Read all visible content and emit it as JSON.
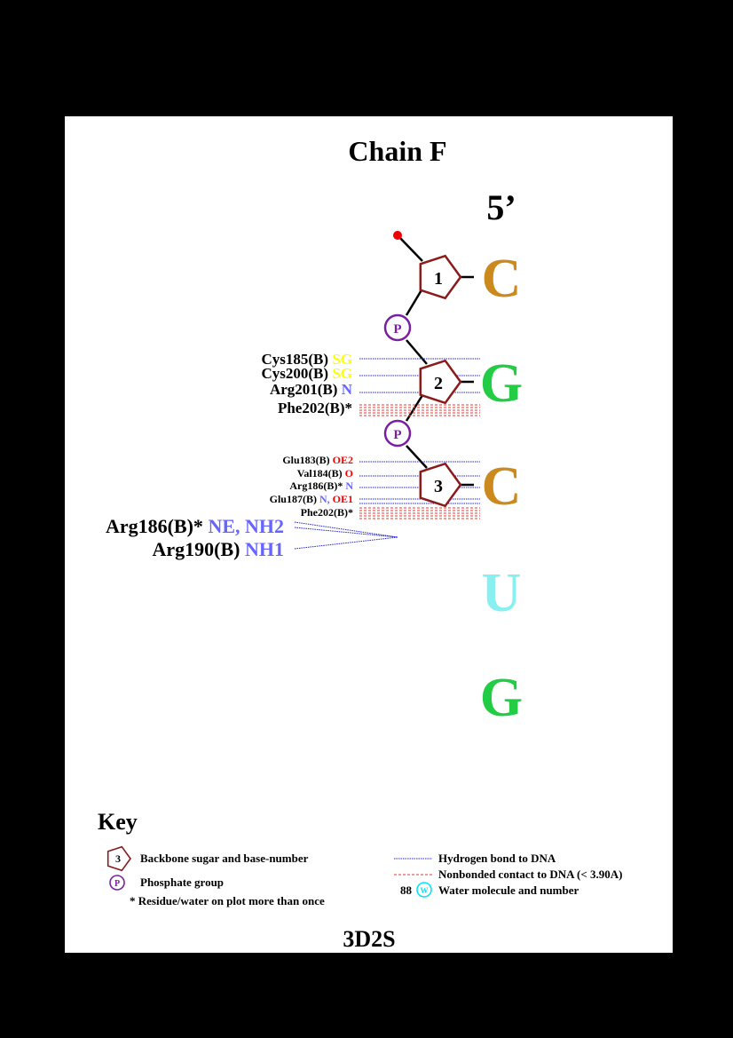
{
  "title": "Chain F",
  "strand_end": "5’",
  "pdb_id": "3D2S",
  "colors": {
    "background": "#000000",
    "page": "#ffffff",
    "sugar": "#8b1a1a",
    "phosphate": "#7b1fa2",
    "hbond": "#2222cc",
    "nonbonded": "#e53935",
    "residue_text": "#000000",
    "atom_N": "#6666ff",
    "atom_O": "#ff0000",
    "atom_S": "#ffff00",
    "water": "#00e5ff"
  },
  "nucleotides": [
    {
      "number": "1",
      "base": "C",
      "color": "#cc8a1e"
    },
    {
      "number": "2",
      "base": "G",
      "color": "#22cc44"
    },
    {
      "number": "3",
      "base": "C",
      "color": "#cc8a1e"
    },
    {
      "number": "",
      "base": "U",
      "color": "#88f0f0"
    },
    {
      "number": "",
      "base": "G",
      "color": "#22cc44"
    }
  ],
  "phosphates": [
    {
      "label": "P"
    },
    {
      "label": "P"
    }
  ],
  "contacts": {
    "nuc2": [
      {
        "residue": "Cys185(B)",
        "atoms": " SG",
        "atom_color": "#ffff00",
        "type": "hbond"
      },
      {
        "residue": "Cys200(B)",
        "atoms": " SG",
        "atom_color": "#ffff00",
        "type": "hbond"
      },
      {
        "residue": "Arg201(B)",
        "atoms": " N",
        "atom_color": "#6666ff",
        "type": "hbond"
      },
      {
        "residue": "Phe202(B)*",
        "atoms": "",
        "atom_color": "",
        "type": "nonbonded"
      }
    ],
    "nuc3": [
      {
        "residue": "Glu183(B)",
        "atoms": " OE2",
        "atom_color": "#ff0000",
        "type": "hbond"
      },
      {
        "residue": "Val184(B)",
        "atoms": " O",
        "atom_color": "#ff0000",
        "type": "hbond"
      },
      {
        "residue": "Arg186(B)*",
        "atoms": " N",
        "atom_color": "#6666ff",
        "type": "hbond"
      },
      {
        "residue": "Glu187(B)",
        "atoms": " N, OE1",
        "atom_color": "mixed",
        "type": "hbond"
      },
      {
        "residue": "Phe202(B)*",
        "atoms": "",
        "atom_color": "",
        "type": "nonbonded"
      }
    ],
    "large": [
      {
        "residue": "Arg186(B)*",
        "atoms": " NE, NH2",
        "atom_color": "#6666ff"
      },
      {
        "residue": "Arg190(B)",
        "atoms": " NH1",
        "atom_color": "#6666ff"
      }
    ]
  },
  "glu187_atoms": [
    {
      "text": " N",
      "color": "#6666ff"
    },
    {
      "text": ", ",
      "color": "#6666ff"
    },
    {
      "text": "OE1",
      "color": "#ff0000"
    }
  ],
  "key": {
    "title": "Key",
    "sugar_number": "3",
    "sugar_label": "Backbone sugar and base-number",
    "phosphate_symbol": "P",
    "phosphate_label": "Phosphate group",
    "repeat_note": "* Residue/water on plot more than once",
    "hbond_label": "Hydrogen bond to DNA",
    "nonbonded_label": "Nonbonded contact to DNA (< 3.90A)",
    "water_number": "88",
    "water_symbol": "W",
    "water_label": "Water molecule and number"
  }
}
